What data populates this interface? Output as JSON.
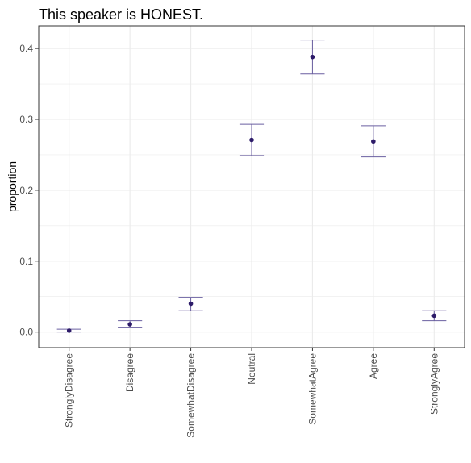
{
  "chart_data": {
    "type": "scatter",
    "title": "This speaker is HONEST.",
    "xlabel": "",
    "ylabel": "proportion",
    "categories": [
      "StronglyDisagree",
      "Disagree",
      "SomewhatDisagree",
      "Neutral",
      "SomewhatAgree",
      "Agree",
      "StronglyAgree"
    ],
    "values": [
      0.002,
      0.011,
      0.04,
      0.271,
      0.388,
      0.269,
      0.023
    ],
    "error_low": [
      0.0,
      0.006,
      0.03,
      0.249,
      0.364,
      0.247,
      0.016
    ],
    "error_high": [
      0.004,
      0.016,
      0.049,
      0.293,
      0.412,
      0.291,
      0.03
    ],
    "ylim": [
      -0.022,
      0.432
    ],
    "yticks": [
      0.0,
      0.1,
      0.2,
      0.3,
      0.4
    ],
    "ytick_labels": [
      "0.0",
      "0.1",
      "0.2",
      "0.3",
      "0.4"
    ],
    "grid": true,
    "legend": "none",
    "colors": {
      "point": "#2d1b69",
      "errorbar": "#6a5fa0",
      "grid": "#ebebeb",
      "panel_border": "#333333",
      "text": "#4d4d4d"
    }
  }
}
